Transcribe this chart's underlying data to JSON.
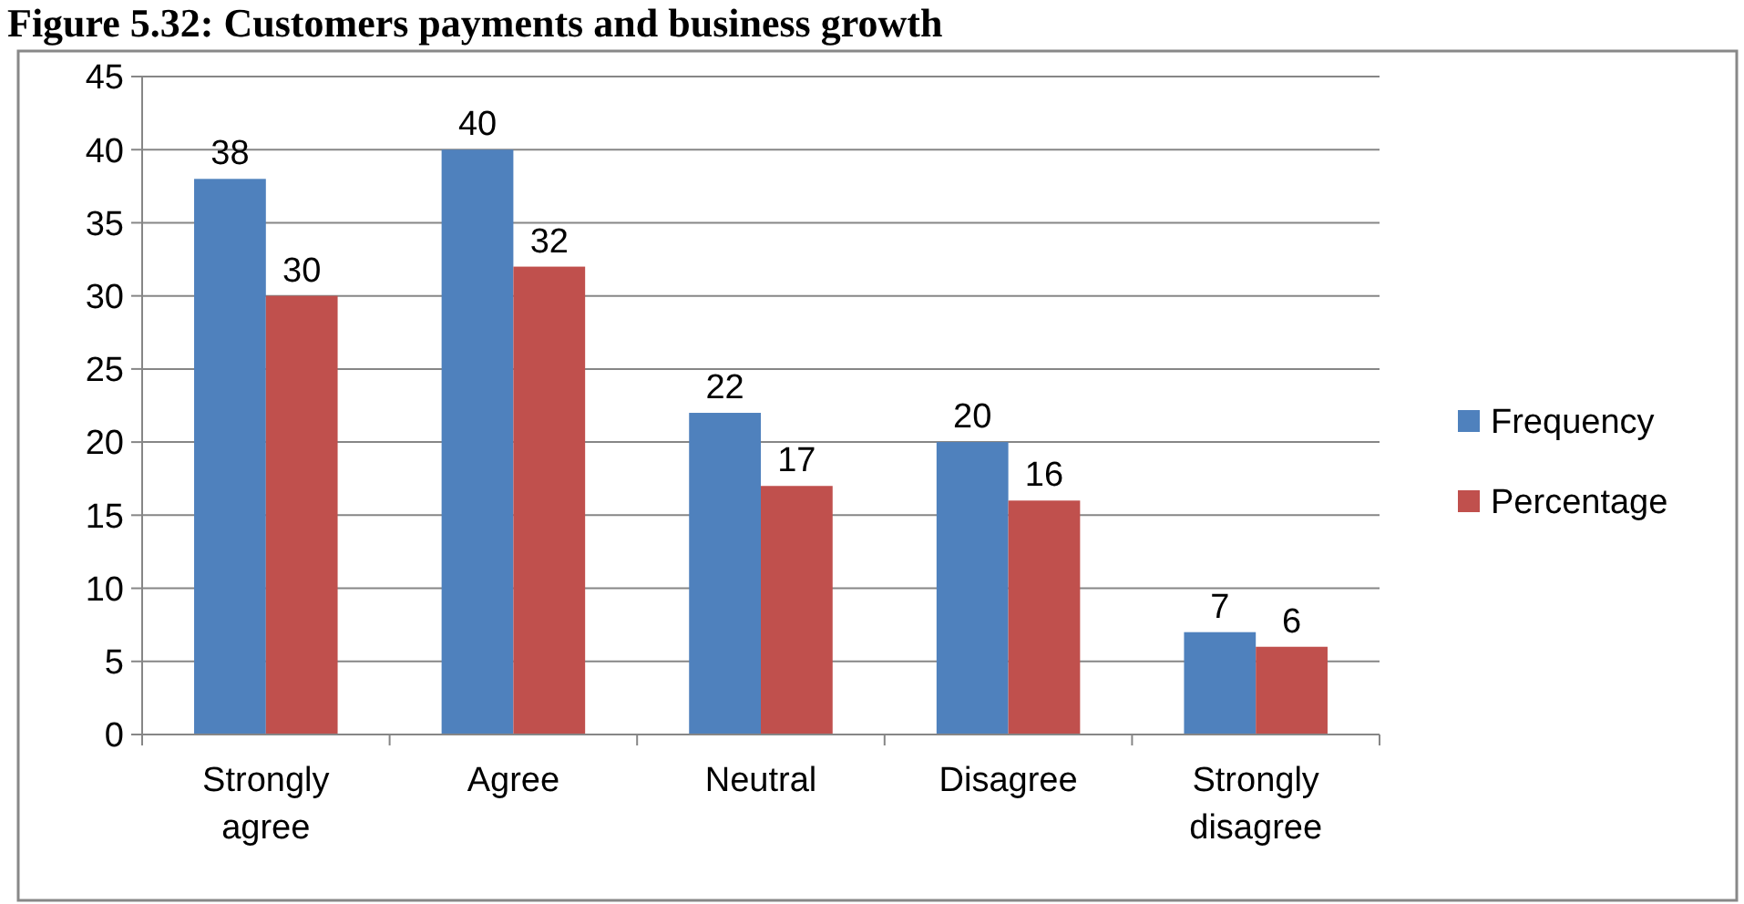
{
  "chart_data": {
    "type": "bar",
    "title": "Figure 5.32: Customers payments and business growth",
    "categories": [
      "Strongly agree",
      "Agree",
      "Neutral",
      "Disagree",
      "Strongly disagree"
    ],
    "series": [
      {
        "name": "Frequency",
        "color": "#4f81bd",
        "values": [
          38,
          40,
          22,
          20,
          7
        ]
      },
      {
        "name": "Percentage",
        "color": "#c0504d",
        "values": [
          30,
          32,
          17,
          16,
          6
        ]
      }
    ],
    "ylim": [
      0,
      45
    ],
    "yticks": [
      0,
      5,
      10,
      15,
      20,
      25,
      30,
      35,
      40,
      45
    ],
    "grid": "y",
    "legend": "right",
    "data_labels": true
  }
}
